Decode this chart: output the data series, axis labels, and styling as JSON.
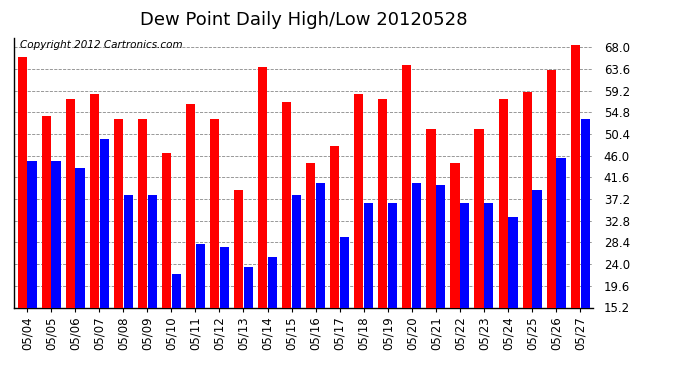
{
  "title": "Dew Point Daily High/Low 20120528",
  "copyright": "Copyright 2012 Cartronics.com",
  "dates": [
    "05/04",
    "05/05",
    "05/06",
    "05/07",
    "05/08",
    "05/09",
    "05/10",
    "05/11",
    "05/12",
    "05/13",
    "05/14",
    "05/15",
    "05/16",
    "05/17",
    "05/18",
    "05/19",
    "05/20",
    "05/21",
    "05/22",
    "05/23",
    "05/24",
    "05/25",
    "05/26",
    "05/27"
  ],
  "highs": [
    66.0,
    54.0,
    57.5,
    58.5,
    53.5,
    53.5,
    46.5,
    56.5,
    53.5,
    39.0,
    64.0,
    57.0,
    44.5,
    48.0,
    58.5,
    57.5,
    64.5,
    51.5,
    44.5,
    51.5,
    57.5,
    59.0,
    63.5,
    68.5
  ],
  "lows": [
    45.0,
    45.0,
    43.5,
    49.5,
    38.0,
    38.0,
    22.0,
    28.0,
    27.5,
    23.5,
    25.5,
    38.0,
    40.5,
    29.5,
    36.5,
    36.5,
    40.5,
    40.0,
    36.5,
    36.5,
    33.5,
    39.0,
    45.5,
    53.5
  ],
  "high_color": "#ff0000",
  "low_color": "#0000ff",
  "bg_color": "#ffffff",
  "grid_color": "#888888",
  "yticks": [
    15.2,
    19.6,
    24.0,
    28.4,
    32.8,
    37.2,
    41.6,
    46.0,
    50.4,
    54.8,
    59.2,
    63.6,
    68.0
  ],
  "ymin": 15.2,
  "ymax": 70.0,
  "title_fontsize": 13,
  "copyright_fontsize": 7.5,
  "tick_fontsize": 8.5
}
